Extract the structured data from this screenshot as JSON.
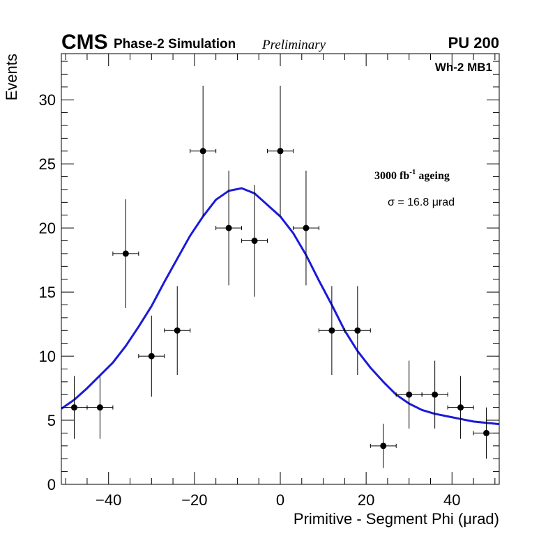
{
  "chart_data": {
    "type": "scatter",
    "header": {
      "experiment": "CMS",
      "subtitle": "Phase-2 Simulation",
      "status": "Preliminary",
      "pileup": "PU 200"
    },
    "region_label": "Wh-2 MB1",
    "ageing_label": {
      "prefix": "3000 fb",
      "superscript": "-1",
      "suffix": " ageing"
    },
    "sigma_label": "σ = 16.8 μrad",
    "xlabel": "Primitive - Segment Phi (μrad)",
    "ylabel": "Events",
    "xlim": [
      -51,
      51
    ],
    "ylim": [
      0,
      33.6
    ],
    "x_ticks": [
      -40,
      -20,
      0,
      20,
      40
    ],
    "x_tick_labels": [
      "−40",
      "−20",
      "0",
      "20",
      "40"
    ],
    "y_ticks": [
      0,
      5,
      10,
      15,
      20,
      25,
      30
    ],
    "y_tick_labels": [
      "0",
      "5",
      "10",
      "15",
      "20",
      "25",
      "30"
    ],
    "bin_half_width": 3,
    "series": [
      {
        "name": "Events",
        "color": "#000000",
        "x": [
          -48,
          -42,
          -36,
          -30,
          -24,
          -18,
          -12,
          -6,
          0,
          6,
          12,
          18,
          24,
          30,
          36,
          42,
          48
        ],
        "y": [
          6,
          6,
          18,
          10,
          12,
          26,
          20,
          19,
          26,
          20,
          12,
          12,
          3,
          7,
          7,
          6,
          4
        ]
      }
    ],
    "fit": {
      "name": "Gaussian fit",
      "color": "#1a1ad9",
      "x": [
        -51,
        -48,
        -45,
        -42,
        -39,
        -36,
        -33,
        -30,
        -27,
        -24,
        -21,
        -18,
        -15,
        -12,
        -9,
        -6,
        -3,
        0,
        3,
        6,
        9,
        12,
        15,
        18,
        21,
        24,
        27,
        30,
        33,
        36,
        39,
        42,
        45,
        48,
        51
      ],
      "y": [
        5.9,
        6.6,
        7.5,
        8.5,
        9.5,
        10.8,
        12.3,
        13.9,
        15.8,
        17.6,
        19.4,
        20.9,
        22.2,
        22.9,
        23.1,
        22.7,
        21.8,
        20.9,
        19.6,
        17.9,
        15.9,
        14.0,
        12.0,
        10.4,
        9.1,
        8.0,
        7.0,
        6.3,
        5.8,
        5.5,
        5.3,
        5.1,
        4.9,
        4.8,
        4.7
      ]
    }
  }
}
